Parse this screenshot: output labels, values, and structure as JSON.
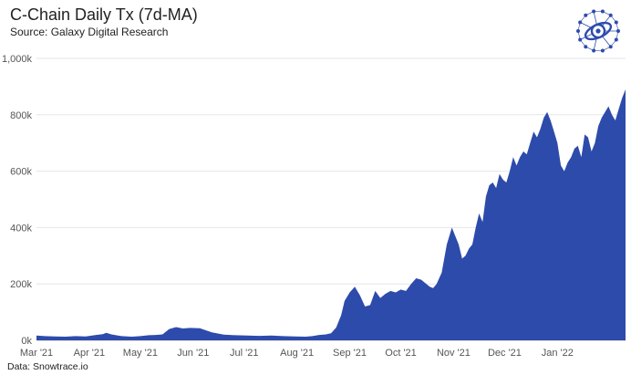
{
  "header": {
    "title": "C-Chain Daily Tx (7d-MA)",
    "subtitle": "Source: Galaxy Digital Research"
  },
  "footer": {
    "source": "Data: Snowtrace.io"
  },
  "logo": {
    "icon": "galaxy-digital-logo-icon",
    "color": "#2d4bab"
  },
  "chart_data": {
    "type": "area",
    "title": "C-Chain Daily Tx (7d-MA)",
    "xlabel": "",
    "ylabel": "",
    "ylim": [
      0,
      1000000
    ],
    "yticks": [
      0,
      200000,
      400000,
      600000,
      800000,
      1000000
    ],
    "ytick_labels": [
      "0k",
      "200k",
      "400k",
      "600k",
      "800k",
      "1,000k"
    ],
    "xlim": [
      "2021-03-01",
      "2022-02-10"
    ],
    "xticks": [
      "2021-03-01",
      "2021-04-01",
      "2021-05-01",
      "2021-06-01",
      "2021-07-01",
      "2021-08-01",
      "2021-09-01",
      "2021-10-01",
      "2021-11-01",
      "2021-12-01",
      "2022-01-01"
    ],
    "xtick_labels": [
      "Mar '21",
      "Apr '21",
      "May '21",
      "Jun '21",
      "Jul '21",
      "Aug '21",
      "Sep '21",
      "Oct '21",
      "Nov '21",
      "Dec '21",
      "Jan '22"
    ],
    "grid": true,
    "color": "#2d4bab",
    "series": [
      {
        "x": [
          "2021-03-01",
          "2021-03-06",
          "2021-03-12",
          "2021-03-18",
          "2021-03-24",
          "2021-03-30",
          "2021-04-05",
          "2021-04-09",
          "2021-04-11",
          "2021-04-14",
          "2021-04-20",
          "2021-04-26",
          "2021-05-01",
          "2021-05-06",
          "2021-05-10",
          "2021-05-14",
          "2021-05-18",
          "2021-05-22",
          "2021-05-26",
          "2021-05-30",
          "2021-06-05",
          "2021-06-12",
          "2021-06-19",
          "2021-06-26",
          "2021-07-03",
          "2021-07-10",
          "2021-07-17",
          "2021-07-24",
          "2021-07-31",
          "2021-08-06",
          "2021-08-10",
          "2021-08-14",
          "2021-08-18",
          "2021-08-21",
          "2021-08-24",
          "2021-08-27",
          "2021-08-29",
          "2021-09-01",
          "2021-09-04",
          "2021-09-07",
          "2021-09-10",
          "2021-09-13",
          "2021-09-16",
          "2021-09-19",
          "2021-09-22",
          "2021-09-25",
          "2021-09-28",
          "2021-10-01",
          "2021-10-04",
          "2021-10-07",
          "2021-10-10",
          "2021-10-13",
          "2021-10-16",
          "2021-10-18",
          "2021-10-20",
          "2021-10-22",
          "2021-10-25",
          "2021-10-28",
          "2021-10-31",
          "2021-11-02",
          "2021-11-04",
          "2021-11-06",
          "2021-11-08",
          "2021-11-10",
          "2021-11-12",
          "2021-11-14",
          "2021-11-16",
          "2021-11-18",
          "2021-11-20",
          "2021-11-22",
          "2021-11-24",
          "2021-11-26",
          "2021-11-28",
          "2021-11-30",
          "2021-12-02",
          "2021-12-04",
          "2021-12-06",
          "2021-12-08",
          "2021-12-10",
          "2021-12-12",
          "2021-12-14",
          "2021-12-16",
          "2021-12-18",
          "2021-12-20",
          "2021-12-22",
          "2021-12-24",
          "2021-12-26",
          "2021-12-28",
          "2021-12-30",
          "2022-01-01",
          "2022-01-03",
          "2022-01-05",
          "2022-01-07",
          "2022-01-09",
          "2022-01-11",
          "2022-01-13",
          "2022-01-15",
          "2022-01-17",
          "2022-01-19",
          "2022-01-21",
          "2022-01-23",
          "2022-01-25",
          "2022-01-27",
          "2022-01-29",
          "2022-01-31",
          "2022-02-02",
          "2022-02-04",
          "2022-02-06",
          "2022-02-08",
          "2022-02-10"
        ],
        "y": [
          17000,
          15000,
          14000,
          13000,
          15000,
          14000,
          19000,
          22000,
          27000,
          21000,
          15000,
          13000,
          15000,
          18000,
          19000,
          21000,
          40000,
          47000,
          42000,
          44000,
          43000,
          28000,
          20000,
          18000,
          17000,
          16000,
          17000,
          15000,
          14000,
          13000,
          15000,
          19000,
          21000,
          25000,
          45000,
          90000,
          140000,
          170000,
          190000,
          160000,
          120000,
          125000,
          175000,
          150000,
          165000,
          175000,
          170000,
          180000,
          175000,
          200000,
          220000,
          215000,
          200000,
          190000,
          185000,
          200000,
          240000,
          340000,
          400000,
          370000,
          340000,
          290000,
          300000,
          325000,
          340000,
          400000,
          450000,
          420000,
          510000,
          550000,
          560000,
          540000,
          590000,
          570000,
          560000,
          600000,
          650000,
          620000,
          650000,
          670000,
          660000,
          700000,
          740000,
          720000,
          750000,
          790000,
          810000,
          780000,
          740000,
          700000,
          620000,
          600000,
          630000,
          650000,
          680000,
          690000,
          650000,
          730000,
          720000,
          670000,
          700000,
          760000,
          790000,
          810000,
          830000,
          800000,
          780000,
          820000,
          860000,
          890000
        ]
      }
    ]
  }
}
